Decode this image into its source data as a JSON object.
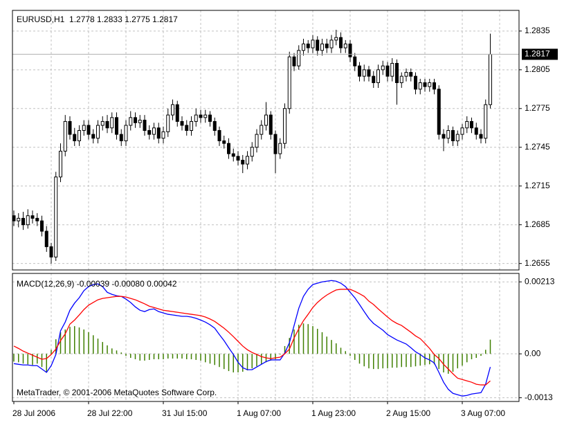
{
  "chart_data": [
    {
      "type": "candlestick",
      "title": "EURUSD,H1  1.2778 1.2833 1.2775 1.2817",
      "open": [
        1.2692,
        1.2688,
        1.269,
        1.2685,
        1.2692,
        1.269,
        1.2688,
        1.268,
        1.2668,
        1.266,
        1.2722,
        1.2742,
        1.2765,
        1.2755,
        1.275,
        1.2758,
        1.2762,
        1.2755,
        1.2752,
        1.2762,
        1.2765,
        1.276,
        1.2768,
        1.2755,
        1.275,
        1.2762,
        1.2768,
        1.2764,
        1.2766,
        1.2758,
        1.2755,
        1.276,
        1.2752,
        1.2757,
        1.277,
        1.2778,
        1.2765,
        1.2762,
        1.2758,
        1.2765,
        1.277,
        1.2768,
        1.277,
        1.2765,
        1.2758,
        1.275,
        1.2748,
        1.274,
        1.2738,
        1.2735,
        1.2732,
        1.2738,
        1.2745,
        1.2755,
        1.2762,
        1.277,
        1.2755,
        1.274,
        1.2748,
        1.2775,
        1.2815,
        1.2808,
        1.282,
        1.2825,
        1.2822,
        1.2828,
        1.282,
        1.2825,
        1.2822,
        1.2828,
        1.283,
        1.2822,
        1.2825,
        1.2815,
        1.2808,
        1.28,
        1.2805,
        1.28,
        1.2795,
        1.2805,
        1.2808,
        1.28,
        1.281,
        1.2795,
        1.28,
        1.2803,
        1.28,
        1.279,
        1.2795,
        1.2792,
        1.2795,
        1.279,
        1.2755,
        1.2752,
        1.2758,
        1.275,
        1.2755,
        1.276,
        1.2765,
        1.276,
        1.2755,
        1.2752,
        1.2778
      ],
      "high": [
        1.2696,
        1.2694,
        1.2695,
        1.2697,
        1.2696,
        1.2694,
        1.2692,
        1.2684,
        1.2671,
        1.2726,
        1.2748,
        1.277,
        1.2769,
        1.276,
        1.2762,
        1.2766,
        1.2766,
        1.2759,
        1.2766,
        1.2769,
        1.277,
        1.2772,
        1.2772,
        1.2759,
        1.2766,
        1.2773,
        1.2772,
        1.277,
        1.277,
        1.2762,
        1.2764,
        1.2764,
        1.2761,
        1.2775,
        1.2782,
        1.2781,
        1.2769,
        1.2766,
        1.2769,
        1.2775,
        1.2774,
        1.2774,
        1.2773,
        1.2768,
        1.2761,
        1.2754,
        1.2752,
        1.2744,
        1.2742,
        1.2739,
        1.2742,
        1.2749,
        1.2759,
        1.2766,
        1.278,
        1.2773,
        1.2758,
        1.2752,
        1.2779,
        1.2819,
        1.2818,
        1.2824,
        1.2829,
        1.2828,
        1.2832,
        1.2831,
        1.2829,
        1.2829,
        1.2832,
        1.2836,
        1.2834,
        1.2828,
        1.2828,
        1.2818,
        1.2811,
        1.2809,
        1.2808,
        1.2804,
        1.2809,
        1.2812,
        1.2811,
        1.2814,
        1.2813,
        1.2803,
        1.2806,
        1.2806,
        1.2803,
        1.2798,
        1.2798,
        1.2798,
        1.2798,
        1.2793,
        1.2759,
        1.2762,
        1.2761,
        1.2758,
        1.2763,
        1.2769,
        1.2768,
        1.2764,
        1.2759,
        1.2782,
        1.2833
      ],
      "low": [
        1.2684,
        1.2683,
        1.2681,
        1.2682,
        1.2686,
        1.2684,
        1.2676,
        1.2664,
        1.2655,
        1.2657,
        1.2718,
        1.2738,
        1.2751,
        1.2746,
        1.2746,
        1.2754,
        1.2751,
        1.2748,
        1.2748,
        1.2758,
        1.2756,
        1.2756,
        1.2751,
        1.2746,
        1.2746,
        1.2758,
        1.276,
        1.276,
        1.2754,
        1.2751,
        1.2751,
        1.2748,
        1.2748,
        1.2753,
        1.2766,
        1.2761,
        1.2758,
        1.2754,
        1.2754,
        1.2761,
        1.2764,
        1.2764,
        1.2761,
        1.2754,
        1.2746,
        1.2744,
        1.2736,
        1.2734,
        1.2731,
        1.2725,
        1.2728,
        1.2734,
        1.2741,
        1.2751,
        1.2758,
        1.2751,
        1.2725,
        1.2736,
        1.2744,
        1.2771,
        1.2804,
        1.2805,
        1.2816,
        1.2818,
        1.2818,
        1.2816,
        1.2816,
        1.2818,
        1.2818,
        1.2824,
        1.2818,
        1.2818,
        1.2811,
        1.2804,
        1.2796,
        1.2796,
        1.2796,
        1.2791,
        1.2791,
        1.2801,
        1.2796,
        1.2796,
        1.2778,
        1.2791,
        1.2796,
        1.2796,
        1.2786,
        1.2786,
        1.2788,
        1.2788,
        1.2786,
        1.2751,
        1.2742,
        1.2748,
        1.2746,
        1.2746,
        1.2751,
        1.2756,
        1.2756,
        1.2751,
        1.2748,
        1.2748,
        1.2775
      ],
      "close": [
        1.2688,
        1.269,
        1.2685,
        1.2692,
        1.269,
        1.2688,
        1.268,
        1.2668,
        1.266,
        1.2722,
        1.2742,
        1.2765,
        1.2755,
        1.275,
        1.2758,
        1.2762,
        1.2755,
        1.2752,
        1.2762,
        1.2765,
        1.276,
        1.2768,
        1.2755,
        1.275,
        1.2762,
        1.2768,
        1.2764,
        1.2766,
        1.2758,
        1.2755,
        1.276,
        1.2752,
        1.2757,
        1.277,
        1.2778,
        1.2765,
        1.2762,
        1.2758,
        1.2765,
        1.277,
        1.2768,
        1.277,
        1.2765,
        1.2758,
        1.275,
        1.2748,
        1.274,
        1.2738,
        1.2735,
        1.2732,
        1.2738,
        1.2745,
        1.2755,
        1.2762,
        1.277,
        1.2755,
        1.274,
        1.2748,
        1.2775,
        1.2815,
        1.2808,
        1.282,
        1.2825,
        1.2822,
        1.2828,
        1.282,
        1.2825,
        1.2822,
        1.2828,
        1.283,
        1.2822,
        1.2825,
        1.2815,
        1.2808,
        1.28,
        1.2805,
        1.28,
        1.2795,
        1.2805,
        1.2808,
        1.28,
        1.281,
        1.2795,
        1.28,
        1.2803,
        1.28,
        1.279,
        1.2795,
        1.2792,
        1.2795,
        1.279,
        1.2755,
        1.2752,
        1.2758,
        1.275,
        1.2755,
        1.276,
        1.2765,
        1.276,
        1.2755,
        1.2752,
        1.2778,
        1.2817
      ],
      "last_price": 1.2817,
      "ylim": [
        1.265,
        1.2851
      ],
      "yticks": [
        1.2835,
        1.2805,
        1.2775,
        1.2745,
        1.2715,
        1.2685,
        1.2655
      ],
      "up_color": "#ffffff",
      "down_color": "#000000",
      "outline_color": "#000000",
      "grid": true
    },
    {
      "type": "indicator",
      "title": "MACD(12,26,9) -0.00039 -0.00080 0.00042",
      "annotation": "MetaTrader, © 2001-2006 MetaQuotes Software Corp.",
      "categories": [
        "28 Jul 2006",
        null,
        null,
        null,
        null,
        null,
        null,
        null,
        null,
        null,
        null,
        null,
        null,
        null,
        null,
        null,
        "28 Jul 22:00",
        null,
        null,
        null,
        null,
        null,
        null,
        null,
        null,
        null,
        null,
        null,
        null,
        null,
        null,
        null,
        "31 Jul 15:00",
        null,
        null,
        null,
        null,
        null,
        null,
        null,
        null,
        null,
        null,
        null,
        null,
        null,
        null,
        null,
        "1 Aug 07:00",
        null,
        null,
        null,
        null,
        null,
        null,
        null,
        null,
        null,
        null,
        null,
        null,
        null,
        null,
        null,
        "1 Aug 23:00",
        null,
        null,
        null,
        null,
        null,
        null,
        null,
        null,
        null,
        null,
        null,
        null,
        null,
        null,
        null,
        "2 Aug 15:00",
        null,
        null,
        null,
        null,
        null,
        null,
        null,
        null,
        null,
        null,
        null,
        null,
        null,
        null,
        null,
        "3 Aug 07:00",
        null,
        null,
        null,
        null,
        null,
        null
      ],
      "series": [
        {
          "type": "bar",
          "color": "#3f7f00",
          "values": [
            -0.00023,
            -0.00025,
            -0.00029,
            -0.00031,
            -0.00033,
            -0.00029,
            -0.00039,
            -0.00055,
            0.00012,
            0.00043,
            0.00064,
            0.00072,
            0.0008,
            0.00082,
            0.00078,
            0.00072,
            0.00064,
            0.00055,
            0.00045,
            0.00035,
            0.00025,
            0.00016,
            0.0001,
            4e-05,
            -6e-05,
            -0.00012,
            -0.00016,
            -0.0002,
            -0.0002,
            -0.00018,
            -0.00016,
            -0.00016,
            -0.00016,
            -0.00014,
            -0.00014,
            -0.00014,
            -0.00014,
            -0.00016,
            -0.00016,
            -0.00018,
            -0.0002,
            -0.00025,
            -0.00029,
            -0.00033,
            -0.00039,
            -0.00045,
            -0.00051,
            -0.00055,
            -0.00055,
            -0.00053,
            -0.00049,
            -0.00043,
            -0.00037,
            -0.00031,
            -0.00025,
            -0.0002,
            -0.00016,
            -2e-05,
            0.00023,
            0.00047,
            0.00072,
            0.00086,
            0.0009,
            0.00088,
            0.00082,
            0.00074,
            0.00064,
            0.00051,
            0.00041,
            0.00031,
            0.00018,
            8e-05,
            -6e-05,
            -0.00018,
            -0.00029,
            -0.00037,
            -0.00043,
            -0.00045,
            -0.00045,
            -0.00043,
            -0.00043,
            -0.00041,
            -0.00041,
            -0.00039,
            -0.00039,
            -0.00039,
            -0.00037,
            -0.00035,
            -0.00033,
            -0.00031,
            -0.00031,
            -0.00045,
            -0.00055,
            -0.00059,
            -0.00053,
            -0.00043,
            -0.00035,
            -0.00025,
            -0.00016,
            -0.00012,
            -6e-05,
            0.00012,
            0.00042
          ]
        },
        {
          "type": "line",
          "color": "#0000ff",
          "values": [
            -0.00029,
            -0.00031,
            -0.00033,
            -0.00033,
            -0.00035,
            -0.00035,
            -0.00045,
            -0.00055,
            -0.00035,
            -2e-05,
            0.00068,
            0.00094,
            0.00129,
            0.0015,
            0.00166,
            0.00187,
            0.00199,
            0.00205,
            0.00207,
            0.00199,
            0.00182,
            0.00176,
            0.00172,
            0.0017,
            0.00162,
            0.00152,
            0.00139,
            0.00129,
            0.00125,
            0.00131,
            0.00133,
            0.00125,
            0.00121,
            0.00117,
            0.00115,
            0.00113,
            0.00111,
            0.00111,
            0.00109,
            0.00105,
            0.001,
            0.00094,
            0.00086,
            0.00076,
            0.00057,
            0.00039,
            0.00018,
            -2e-05,
            -0.00025,
            -0.00041,
            -0.00047,
            -0.00047,
            -0.00039,
            -0.00031,
            -0.00023,
            -0.00018,
            -0.00018,
            -0.00018,
            2e-05,
            0.00033,
            0.00084,
            0.00135,
            0.0017,
            0.00191,
            0.00205,
            0.00209,
            0.00213,
            0.00215,
            0.00217,
            0.00215,
            0.00209,
            0.00199,
            0.00182,
            0.00166,
            0.00146,
            0.00125,
            0.00105,
            0.0009,
            0.0008,
            0.0007,
            0.00057,
            0.00049,
            0.00041,
            0.00035,
            0.00029,
            0.00018,
            6e-05,
            -2e-05,
            -0.00012,
            -0.00018,
            -0.00027,
            -0.00055,
            -0.00084,
            -0.00105,
            -0.00117,
            -0.00121,
            -0.00125,
            -0.00123,
            -0.00119,
            -0.00117,
            -0.00115,
            -0.0009,
            -0.00039
          ]
        },
        {
          "type": "line",
          "color": "#ff0000",
          "values": [
            0.00023,
            0.00016,
            8e-05,
            2e-05,
            -4e-05,
            -0.0001,
            -0.00016,
            -0.00014,
            -2e-05,
            0.00014,
            0.00039,
            0.00059,
            0.00088,
            0.001,
            0.00115,
            0.00131,
            0.00144,
            0.00152,
            0.0016,
            0.00164,
            0.00166,
            0.00168,
            0.0017,
            0.0017,
            0.00168,
            0.00164,
            0.0016,
            0.00154,
            0.00148,
            0.00141,
            0.00137,
            0.00133,
            0.00129,
            0.00127,
            0.00125,
            0.00123,
            0.00121,
            0.00119,
            0.00117,
            0.00115,
            0.00113,
            0.00109,
            0.00103,
            0.00096,
            0.00086,
            0.00076,
            0.00064,
            0.00051,
            0.00037,
            0.00023,
            0.00012,
            4e-05,
            -2e-05,
            -8e-05,
            -0.00012,
            -0.00014,
            -0.00012,
            -0.0001,
            0,
            0.00014,
            0.00047,
            0.00074,
            0.00098,
            0.00117,
            0.00137,
            0.00152,
            0.00164,
            0.00174,
            0.00182,
            0.00189,
            0.00191,
            0.00191,
            0.00191,
            0.00185,
            0.00178,
            0.0017,
            0.00156,
            0.00146,
            0.00133,
            0.00121,
            0.00109,
            0.00098,
            0.0009,
            0.00084,
            0.00074,
            0.00064,
            0.00053,
            0.00045,
            0.00031,
            0.00016,
            -2e-05,
            -0.00014,
            -0.00031,
            -0.00045,
            -0.00059,
            -0.00072,
            -0.00076,
            -0.0008,
            -0.00084,
            -0.0009,
            -0.00092,
            -0.00092,
            -0.0008
          ]
        }
      ],
      "ylim": [
        -0.00141,
        0.00238
      ],
      "yticks": [
        0.00213,
        {
          "value": 0,
          "label": "0.00"
        },
        -0.0013
      ],
      "grid": true
    }
  ]
}
